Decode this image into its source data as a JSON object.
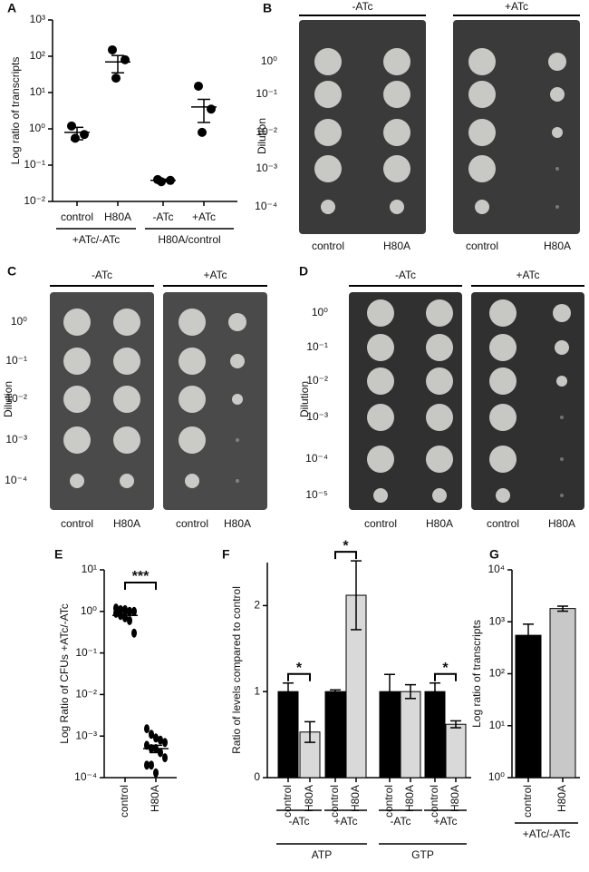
{
  "chart_data": [
    {
      "panel": "A",
      "type": "dotplot",
      "y_label": "Log ratio of transcripts",
      "log_scale": true,
      "categories": [
        "control",
        "H80A",
        "-ATc",
        "+ATc"
      ],
      "group_labels": [
        "+ATc/-ATc",
        "H80A/control"
      ],
      "points": [
        [
          1.2,
          0.7,
          0.55
        ],
        [
          150,
          80,
          25
        ],
        [
          0.04,
          0.038,
          0.035
        ],
        [
          15,
          3.5,
          0.8
        ]
      ],
      "means": [
        0.8,
        70,
        0.038,
        4
      ],
      "errors": [
        0.3,
        35,
        0.003,
        2.5
      ],
      "color": "#000000",
      "ylim": [
        0.01,
        1000
      ],
      "yticks": [
        {
          "value": 0.01,
          "label": "10⁻²"
        },
        {
          "value": 0.1,
          "label": "10⁻¹"
        },
        {
          "value": 1,
          "label": "10⁰"
        },
        {
          "value": 10,
          "label": "10¹"
        },
        {
          "value": 100,
          "label": "10²"
        },
        {
          "value": 1000,
          "label": "10³"
        }
      ]
    },
    {
      "panel": "E",
      "type": "dotplot",
      "y_label": "Log Ratio of CFUs +ATc/-ATc",
      "log_scale": true,
      "categories": [
        "control",
        "H80A"
      ],
      "points": [
        [
          1.2,
          1.1,
          1.1,
          1.0,
          1.0,
          0.9,
          0.8,
          0.7,
          0.6,
          0.3
        ],
        [
          0.0015,
          0.0011,
          0.0009,
          0.0008,
          0.0007,
          0.0006,
          0.0005,
          0.0005,
          0.0004,
          0.0003,
          0.0002,
          0.0002,
          0.00013
        ]
      ],
      "means": [
        0.8,
        0.0005
      ],
      "errors": [
        0.08,
        0.0001
      ],
      "color": "#000000",
      "significance": [
        "***"
      ],
      "ylim": [
        0.0001,
        10
      ],
      "yticks": [
        {
          "value": 0.0001,
          "label": "10⁻⁴"
        },
        {
          "value": 0.001,
          "label": "10⁻³"
        },
        {
          "value": 0.01,
          "label": "10⁻²"
        },
        {
          "value": 0.1,
          "label": "10⁻¹"
        },
        {
          "value": 1,
          "label": "10⁰"
        },
        {
          "value": 10,
          "label": "10¹"
        }
      ]
    },
    {
      "panel": "F",
      "type": "bar",
      "y_label": "Ratio of levels compared to control",
      "log_scale": false,
      "categories": [
        "control",
        "H80A",
        "control",
        "H80A",
        "control",
        "H80A",
        "control",
        "H80A"
      ],
      "values": [
        1.0,
        0.53,
        1.0,
        2.12,
        1.0,
        1.0,
        1.0,
        0.62
      ],
      "errors": [
        0.1,
        0.12,
        0.02,
        0.4,
        0.2,
        0.08,
        0.1,
        0.04
      ],
      "colors": [
        "#000000",
        "#d9d9d9",
        "#000000",
        "#d9d9d9",
        "#000000",
        "#d9d9d9",
        "#000000",
        "#d9d9d9"
      ],
      "group_labels": [
        "-ATc",
        "+ATc",
        "-ATc",
        "+ATc"
      ],
      "supergroup_labels": [
        "ATP",
        "GTP"
      ],
      "significance": [
        "*",
        "*",
        null,
        "*"
      ],
      "ylim": [
        0,
        2.5
      ],
      "yticks": [
        0,
        1,
        2
      ]
    },
    {
      "panel": "G",
      "type": "bar",
      "y_label": "Log ratio of transcripts",
      "log_scale": true,
      "categories": [
        "control",
        "H80A"
      ],
      "values": [
        550,
        1800
      ],
      "errors": [
        350,
        200
      ],
      "colors": [
        "#000000",
        "#c8c8c8"
      ],
      "group_labels": [
        "+ATc/-ATc"
      ],
      "ylim": [
        1,
        10000
      ],
      "yticks": [
        {
          "value": 1,
          "label": "10⁰"
        },
        {
          "value": 10,
          "label": "10¹"
        },
        {
          "value": 100,
          "label": "10²"
        },
        {
          "value": 1000,
          "label": "10³"
        },
        {
          "value": 10000,
          "label": "10⁴"
        }
      ]
    }
  ],
  "photo_panels": [
    {
      "panel": "B",
      "conditions": [
        "-ATc",
        "+ATc"
      ],
      "y_label": "Dilution",
      "dilutions": [
        "10⁰",
        "10⁻¹",
        "10⁻²",
        "10⁻³",
        "10⁻⁴"
      ],
      "columns": [
        "control",
        "H80A",
        "control",
        "H80A"
      ]
    },
    {
      "panel": "C",
      "conditions": [
        "-ATc",
        "+ATc"
      ],
      "y_label": "Dilution",
      "dilutions": [
        "10⁰",
        "10⁻¹",
        "10⁻²",
        "10⁻³",
        "10⁻⁴"
      ],
      "columns": [
        "control",
        "H80A",
        "control",
        "H80A"
      ]
    },
    {
      "panel": "D",
      "conditions": [
        "-ATc",
        "+ATc"
      ],
      "y_label": "Dilution",
      "dilutions": [
        "10⁰",
        "10⁻¹",
        "10⁻²",
        "10⁻³",
        "10⁻⁴",
        "10⁻⁵"
      ],
      "columns": [
        "control",
        "H80A",
        "control",
        "H80A"
      ]
    }
  ]
}
